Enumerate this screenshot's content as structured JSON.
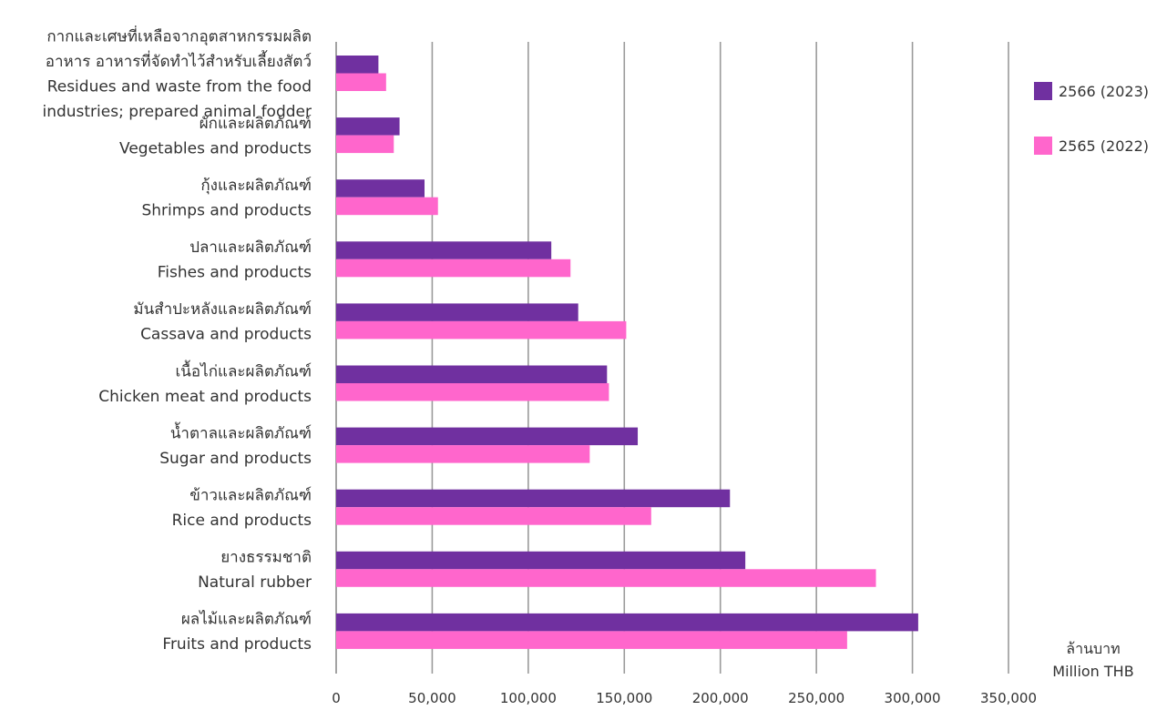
{
  "chart_data": {
    "type": "bar",
    "orientation": "horizontal",
    "categories": [
      {
        "th": "ผลไม้และผลิตภัณฑ์",
        "en": "Fruits and products"
      },
      {
        "th": "ยางธรรมชาติ",
        "en": "Natural rubber"
      },
      {
        "th": "ข้าวและผลิตภัณฑ์",
        "en": "Rice and products"
      },
      {
        "th": "น้ำตาลและผลิตภัณฑ์",
        "en": "Sugar and products"
      },
      {
        "th": "เนื้อไก่และผลิตภัณฑ์",
        "en": "Chicken meat and products"
      },
      {
        "th": "มันสำปะหลังและผลิตภัณฑ์",
        "en": "Cassava and products"
      },
      {
        "th": "ปลาและผลิตภัณฑ์",
        "en": "Fishes and products"
      },
      {
        "th": "กุ้งและผลิตภัณฑ์",
        "en": "Shrimps and products"
      },
      {
        "th": "ผักและผลิตภัณฑ์",
        "en": "Vegetables and products"
      },
      {
        "th": [
          "กากและเศษที่เหลือจากอุตสาหกรรมผลิต",
          "อาหาร อาหารที่จัดทำไว้สำหรับเลี้ยงสัตว์"
        ],
        "en": [
          "Residues and waste from the food",
          "industries; prepared animal fodder"
        ]
      }
    ],
    "series": [
      {
        "name": "2566 (2023)",
        "color": "#7030a0",
        "values": [
          303000,
          213000,
          205000,
          157000,
          141000,
          126000,
          112000,
          46000,
          33000,
          22000
        ]
      },
      {
        "name": "2565 (2022)",
        "color": "#ff66cc",
        "values": [
          266000,
          281000,
          164000,
          132000,
          142000,
          151000,
          122000,
          53000,
          30000,
          26000
        ]
      }
    ],
    "xlim": [
      0,
      350000
    ],
    "xticks": [
      "0",
      "50,000",
      "100,000",
      "150,000",
      "200,000",
      "250,000",
      "300,000",
      "350,000"
    ],
    "xtick_values": [
      0,
      50000,
      100000,
      150000,
      200000,
      250000,
      300000,
      350000
    ],
    "unit_label": [
      "ล้านบาท",
      "Million THB"
    ],
    "grid": true,
    "legend_position": "right-top",
    "category_order": "bottom-to-top"
  }
}
